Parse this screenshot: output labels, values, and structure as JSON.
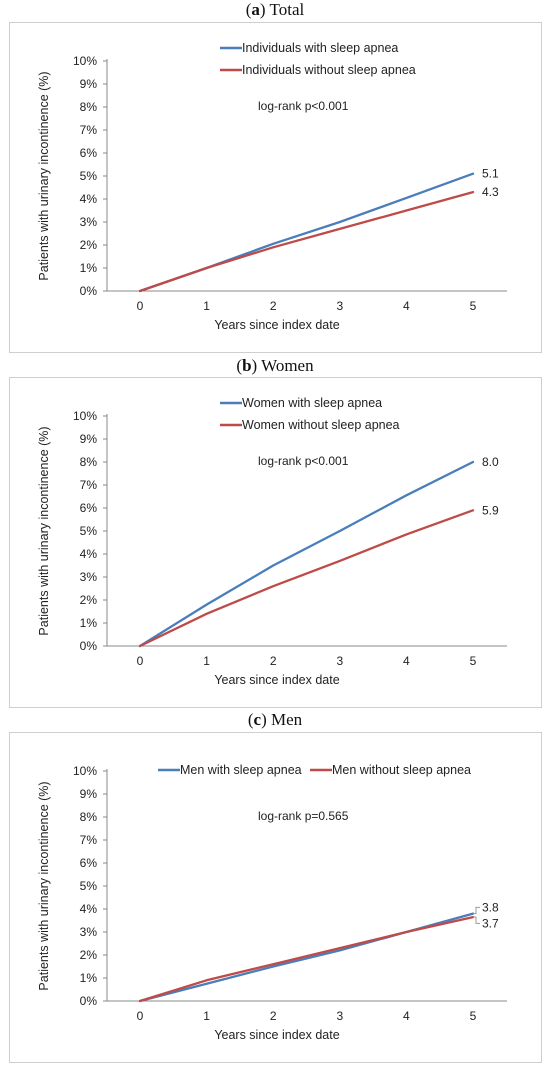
{
  "chart_data": [
    {
      "type": "line",
      "caption_letter": "a",
      "caption_text": "Total",
      "x": [
        0,
        1,
        2,
        3,
        4,
        5
      ],
      "xticks": [
        "0",
        "1",
        "2",
        "3",
        "4",
        "5"
      ],
      "yticks": [
        "0%",
        "1%",
        "2%",
        "3%",
        "4%",
        "5%",
        "6%",
        "7%",
        "8%",
        "9%",
        "10%"
      ],
      "ylim": [
        0,
        10
      ],
      "xlabel": "Years since index date",
      "ylabel": "Patients with urinary incontinence (%)",
      "annotation": "log-rank p<0.001",
      "legend_layout": "stacked",
      "series": [
        {
          "name": "Individuals with sleep apnea",
          "color": "#4a7ebb",
          "values": [
            0,
            1.0,
            2.05,
            3.0,
            4.05,
            5.1
          ],
          "end_label": "5.1"
        },
        {
          "name": "Individuals without sleep apnea",
          "color": "#be4b48",
          "values": [
            0,
            1.0,
            1.9,
            2.7,
            3.5,
            4.3
          ],
          "end_label": "4.3"
        }
      ]
    },
    {
      "type": "line",
      "caption_letter": "b",
      "caption_text": "Women",
      "x": [
        0,
        1,
        2,
        3,
        4,
        5
      ],
      "xticks": [
        "0",
        "1",
        "2",
        "3",
        "4",
        "5"
      ],
      "yticks": [
        "0%",
        "1%",
        "2%",
        "3%",
        "4%",
        "5%",
        "6%",
        "7%",
        "8%",
        "9%",
        "10%"
      ],
      "ylim": [
        0,
        10
      ],
      "xlabel": "Years since index date",
      "ylabel": "Patients with urinary incontinence (%)",
      "annotation": "log-rank p<0.001",
      "legend_layout": "stacked",
      "series": [
        {
          "name": "Women with sleep apnea",
          "color": "#4a7ebb",
          "values": [
            0,
            1.8,
            3.5,
            5.0,
            6.55,
            8.0
          ],
          "end_label": "8.0"
        },
        {
          "name": "Women without sleep apnea",
          "color": "#be4b48",
          "values": [
            0,
            1.4,
            2.6,
            3.7,
            4.85,
            5.9
          ],
          "end_label": "5.9"
        }
      ]
    },
    {
      "type": "line",
      "caption_letter": "c",
      "caption_text": "Men",
      "x": [
        0,
        1,
        2,
        3,
        4,
        5
      ],
      "xticks": [
        "0",
        "1",
        "2",
        "3",
        "4",
        "5"
      ],
      "yticks": [
        "0%",
        "1%",
        "2%",
        "3%",
        "4%",
        "5%",
        "6%",
        "7%",
        "8%",
        "9%",
        "10%"
      ],
      "ylim": [
        0,
        10
      ],
      "xlabel": "Years since index date",
      "ylabel": "Patients with urinary incontinence (%)",
      "annotation": "log-rank p=0.565",
      "legend_layout": "inline",
      "series": [
        {
          "name": "Men with sleep apnea",
          "color": "#4a7ebb",
          "values": [
            0,
            0.75,
            1.5,
            2.2,
            3.0,
            3.8
          ],
          "end_label": "3.8"
        },
        {
          "name": "Men without sleep apnea",
          "color": "#be4b48",
          "values": [
            0,
            0.9,
            1.6,
            2.3,
            3.0,
            3.65
          ],
          "end_label": "3.7"
        }
      ]
    }
  ]
}
